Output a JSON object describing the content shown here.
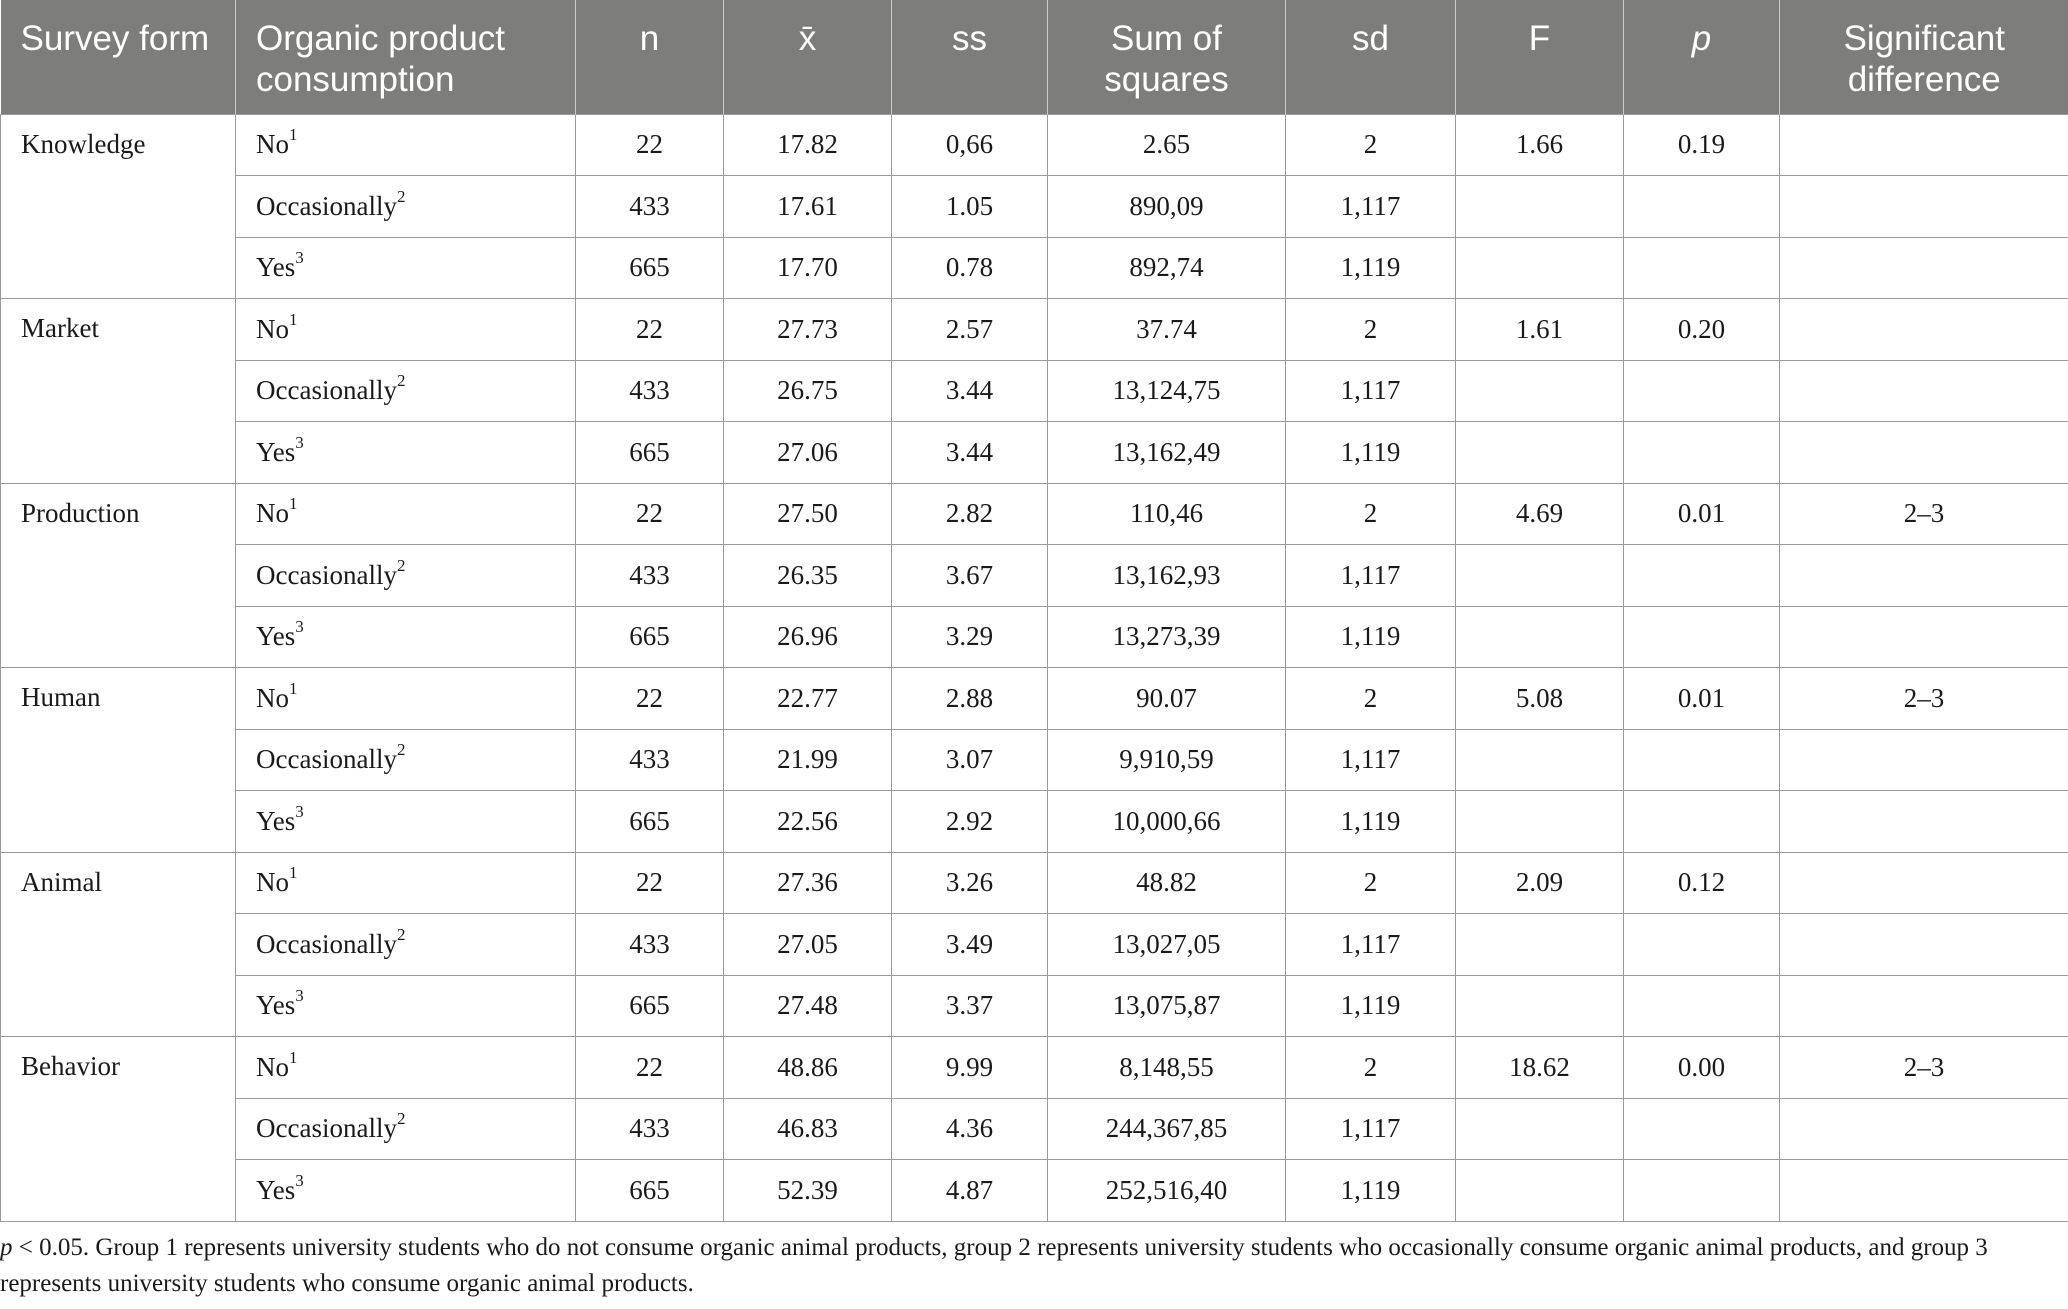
{
  "header": {
    "survey_form": "Survey form",
    "consumption": "Organic product consumption",
    "n": "n",
    "mean": "x̄",
    "ss": "ss",
    "sum_of_squares": "Sum of squares",
    "sd": "sd",
    "F": "F",
    "p": "p",
    "significant_difference": "Significant difference"
  },
  "forms": [
    {
      "name": "Knowledge",
      "F": "1.66",
      "p": "0.19",
      "sig": "",
      "rows": [
        {
          "group": "No",
          "mark": "1",
          "n": "22",
          "mean": "17.82",
          "ss": "0,66",
          "sumsq": "2.65",
          "sd": "2"
        },
        {
          "group": "Occasionally",
          "mark": "2",
          "n": "433",
          "mean": "17.61",
          "ss": "1.05",
          "sumsq": "890,09",
          "sd": "1,117"
        },
        {
          "group": "Yes",
          "mark": "3",
          "n": "665",
          "mean": "17.70",
          "ss": "0.78",
          "sumsq": "892,74",
          "sd": "1,119"
        }
      ]
    },
    {
      "name": "Market",
      "F": "1.61",
      "p": "0.20",
      "sig": "",
      "rows": [
        {
          "group": "No",
          "mark": "1",
          "n": "22",
          "mean": "27.73",
          "ss": "2.57",
          "sumsq": "37.74",
          "sd": "2"
        },
        {
          "group": "Occasionally",
          "mark": "2",
          "n": "433",
          "mean": "26.75",
          "ss": "3.44",
          "sumsq": "13,124,75",
          "sd": "1,117"
        },
        {
          "group": "Yes",
          "mark": "3",
          "n": "665",
          "mean": "27.06",
          "ss": "3.44",
          "sumsq": "13,162,49",
          "sd": "1,119"
        }
      ]
    },
    {
      "name": "Production",
      "F": "4.69",
      "p": "0.01",
      "sig": "2–3",
      "rows": [
        {
          "group": "No",
          "mark": "1",
          "n": "22",
          "mean": "27.50",
          "ss": "2.82",
          "sumsq": "110,46",
          "sd": "2"
        },
        {
          "group": "Occasionally",
          "mark": "2",
          "n": "433",
          "mean": "26.35",
          "ss": "3.67",
          "sumsq": "13,162,93",
          "sd": "1,117"
        },
        {
          "group": "Yes",
          "mark": "3",
          "n": "665",
          "mean": "26.96",
          "ss": "3.29",
          "sumsq": "13,273,39",
          "sd": "1,119"
        }
      ]
    },
    {
      "name": "Human",
      "F": "5.08",
      "p": "0.01",
      "sig": "2–3",
      "rows": [
        {
          "group": "No",
          "mark": "1",
          "n": "22",
          "mean": "22.77",
          "ss": "2.88",
          "sumsq": "90.07",
          "sd": "2"
        },
        {
          "group": "Occasionally",
          "mark": "2",
          "n": "433",
          "mean": "21.99",
          "ss": "3.07",
          "sumsq": "9,910,59",
          "sd": "1,117"
        },
        {
          "group": "Yes",
          "mark": "3",
          "n": "665",
          "mean": "22.56",
          "ss": "2.92",
          "sumsq": "10,000,66",
          "sd": "1,119"
        }
      ]
    },
    {
      "name": "Animal",
      "F": "2.09",
      "p": "0.12",
      "sig": "",
      "rows": [
        {
          "group": "No",
          "mark": "1",
          "n": "22",
          "mean": "27.36",
          "ss": "3.26",
          "sumsq": "48.82",
          "sd": "2"
        },
        {
          "group": "Occasionally",
          "mark": "2",
          "n": "433",
          "mean": "27.05",
          "ss": "3.49",
          "sumsq": "13,027,05",
          "sd": "1,117"
        },
        {
          "group": "Yes",
          "mark": "3",
          "n": "665",
          "mean": "27.48",
          "ss": "3.37",
          "sumsq": "13,075,87",
          "sd": "1,119"
        }
      ]
    },
    {
      "name": "Behavior",
      "F": "18.62",
      "p": "0.00",
      "sig": "2–3",
      "rows": [
        {
          "group": "No",
          "mark": "1",
          "n": "22",
          "mean": "48.86",
          "ss": "9.99",
          "sumsq": "8,148,55",
          "sd": "2"
        },
        {
          "group": "Occasionally",
          "mark": "2",
          "n": "433",
          "mean": "46.83",
          "ss": "4.36",
          "sumsq": "244,367,85",
          "sd": "1,117"
        },
        {
          "group": "Yes",
          "mark": "3",
          "n": "665",
          "mean": "52.39",
          "ss": "4.87",
          "sumsq": "252,516,40",
          "sd": "1,119"
        }
      ]
    }
  ],
  "footnote": {
    "p_symbol": "p",
    "text": " < 0.05. Group 1 represents university students who do not consume organic animal products, group 2 represents university students who occasionally consume organic animal products, and group 3 represents university students who consume organic animal products."
  }
}
